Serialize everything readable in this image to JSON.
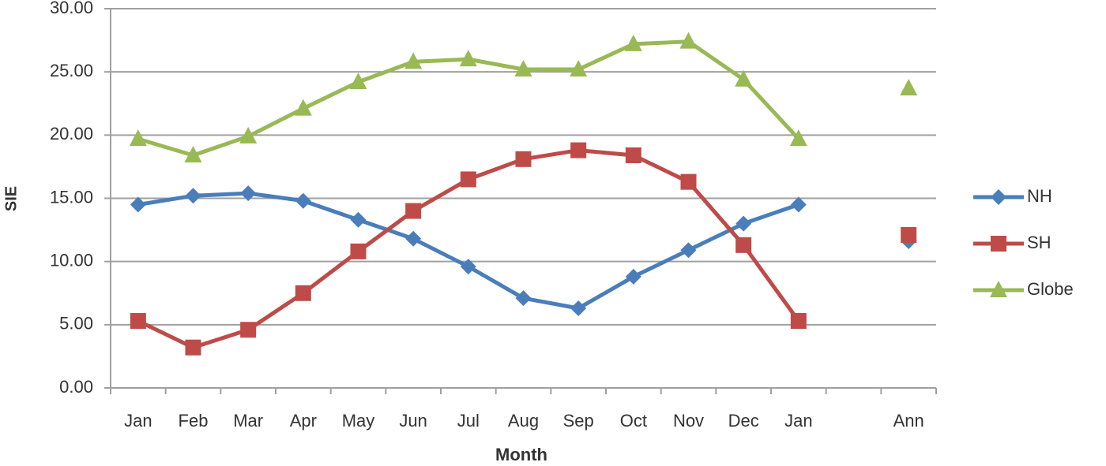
{
  "chart_data": {
    "type": "line",
    "x_label": "Month",
    "y_label": "SIE",
    "categories": [
      "Jan",
      "Feb",
      "Mar",
      "Apr",
      "May",
      "Jun",
      "Jul",
      "Aug",
      "Sep",
      "Oct",
      "Nov",
      "Dec",
      "Jan",
      null,
      "Ann"
    ],
    "series": [
      {
        "name": "NH",
        "color": "#4a7ebb",
        "marker": "diamond",
        "values": [
          14.5,
          15.2,
          15.4,
          14.8,
          13.3,
          11.8,
          9.6,
          7.1,
          6.3,
          8.8,
          10.9,
          13.0,
          14.5,
          null,
          11.6
        ]
      },
      {
        "name": "SH",
        "color": "#be4b48",
        "marker": "square",
        "values": [
          5.3,
          3.2,
          4.6,
          7.5,
          10.8,
          14.0,
          16.5,
          18.1,
          18.8,
          18.4,
          16.3,
          11.3,
          5.3,
          null,
          12.1
        ]
      },
      {
        "name": "Globe",
        "color": "#98b954",
        "marker": "triangle",
        "values": [
          19.7,
          18.4,
          19.9,
          22.1,
          24.2,
          25.8,
          26.0,
          25.2,
          25.2,
          27.2,
          27.4,
          24.4,
          19.7,
          null,
          23.7
        ]
      }
    ],
    "ylim": [
      0,
      30
    ],
    "yticks": [
      {
        "value": 0,
        "label": "0.00"
      },
      {
        "value": 5,
        "label": "5.00"
      },
      {
        "value": 10,
        "label": "10.00"
      },
      {
        "value": 15,
        "label": "15.00"
      },
      {
        "value": 20,
        "label": "20.00"
      },
      {
        "value": 25,
        "label": "25.00"
      },
      {
        "value": 30,
        "label": "30.00"
      }
    ],
    "grid": true,
    "legend": "right"
  }
}
